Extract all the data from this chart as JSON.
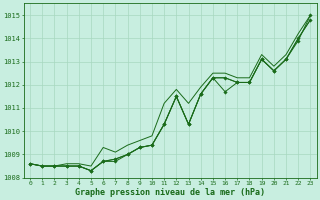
{
  "x": [
    0,
    1,
    2,
    3,
    4,
    5,
    6,
    7,
    8,
    9,
    10,
    11,
    12,
    13,
    14,
    15,
    16,
    17,
    18,
    19,
    20,
    21,
    22,
    23
  ],
  "line1": [
    1008.6,
    1008.5,
    1008.5,
    1008.5,
    1008.5,
    1008.3,
    1008.7,
    1008.7,
    1009.0,
    1009.3,
    1009.4,
    1010.3,
    1011.5,
    1010.3,
    1011.6,
    1012.3,
    1011.7,
    1012.1,
    1012.1,
    1013.1,
    1012.6,
    1013.1,
    1013.9,
    1015.0
  ],
  "line2": [
    1008.6,
    1008.5,
    1008.5,
    1008.5,
    1008.5,
    1008.3,
    1008.7,
    1008.8,
    1009.0,
    1009.3,
    1009.4,
    1010.3,
    1011.5,
    1010.3,
    1011.6,
    1012.3,
    1012.3,
    1012.1,
    1012.1,
    1013.1,
    1012.6,
    1013.1,
    1014.0,
    1014.8
  ],
  "line3": [
    1008.6,
    1008.5,
    1008.5,
    1008.5,
    1008.5,
    1008.3,
    1008.7,
    1008.8,
    1009.0,
    1009.3,
    1009.4,
    1010.3,
    1011.5,
    1010.3,
    1011.6,
    1012.3,
    1012.3,
    1012.1,
    1012.1,
    1013.1,
    1012.6,
    1013.1,
    1014.0,
    1014.8
  ],
  "line4": [
    1008.6,
    1008.5,
    1008.5,
    1008.6,
    1008.6,
    1008.5,
    1009.3,
    1009.1,
    1009.4,
    1009.6,
    1009.8,
    1011.2,
    1011.8,
    1011.2,
    1011.9,
    1012.5,
    1012.5,
    1012.3,
    1012.3,
    1013.3,
    1012.8,
    1013.3,
    1014.2,
    1015.0
  ],
  "line_color": "#1a6b1a",
  "bg_color": "#c8eee0",
  "grid_color": "#a8d8c0",
  "xlabel": "Graphe pression niveau de la mer (hPa)",
  "ylim": [
    1008.0,
    1015.5
  ],
  "yticks": [
    1008,
    1009,
    1010,
    1011,
    1012,
    1013,
    1014,
    1015
  ],
  "xlim": [
    -0.5,
    23.5
  ],
  "xticks": [
    0,
    1,
    2,
    3,
    4,
    5,
    6,
    7,
    8,
    9,
    10,
    11,
    12,
    13,
    14,
    15,
    16,
    17,
    18,
    19,
    20,
    21,
    22,
    23
  ]
}
